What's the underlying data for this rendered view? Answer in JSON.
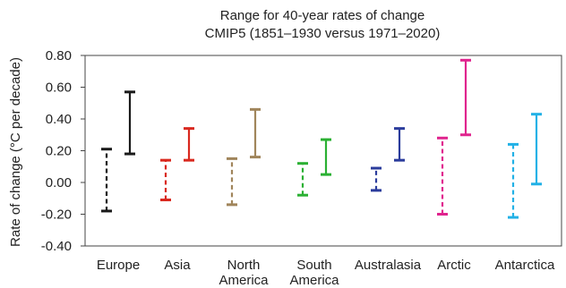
{
  "chart_data": {
    "type": "range",
    "title": [
      "Range for 40-year rates of change",
      "CMIP5 (1851–1930  versus 1971–2020)"
    ],
    "ylabel": "Rate of change (°C per decade)",
    "xlabel": "",
    "ylim": [
      -0.4,
      0.8
    ],
    "yticks": [
      "0.80",
      "0.60",
      "0.40",
      "0.20",
      "0.00",
      "-0.20",
      "-0.40"
    ],
    "ytick_values": [
      0.8,
      0.6,
      0.4,
      0.2,
      0.0,
      -0.2,
      -0.4
    ],
    "categories": [
      {
        "lines": [
          "Europe"
        ],
        "color": "#1a1a1a",
        "early": [
          -0.18,
          0.21
        ],
        "late": [
          0.18,
          0.57
        ]
      },
      {
        "lines": [
          "Asia"
        ],
        "color": "#d9281e",
        "early": [
          -0.11,
          0.14
        ],
        "late": [
          0.14,
          0.34
        ]
      },
      {
        "lines": [
          "North",
          "America"
        ],
        "color": "#a0855b",
        "early": [
          -0.14,
          0.15
        ],
        "late": [
          0.16,
          0.46
        ]
      },
      {
        "lines": [
          "South",
          "America"
        ],
        "color": "#2bb033",
        "early": [
          -0.08,
          0.12
        ],
        "late": [
          0.05,
          0.27
        ]
      },
      {
        "lines": [
          "Australasia"
        ],
        "color": "#2b3c9c",
        "early": [
          -0.05,
          0.09
        ],
        "late": [
          0.14,
          0.34
        ]
      },
      {
        "lines": [
          "Arctic"
        ],
        "color": "#e0248e",
        "early": [
          -0.2,
          0.28
        ],
        "late": [
          0.3,
          0.77
        ]
      },
      {
        "lines": [
          "Antarctica"
        ],
        "color": "#22b1e6",
        "early": [
          -0.22,
          0.24
        ],
        "late": [
          -0.01,
          0.43
        ]
      }
    ],
    "series": [
      {
        "name": "",
        "style": "dashed"
      },
      {
        "name": "",
        "style": "solid"
      }
    ],
    "grid": false
  }
}
